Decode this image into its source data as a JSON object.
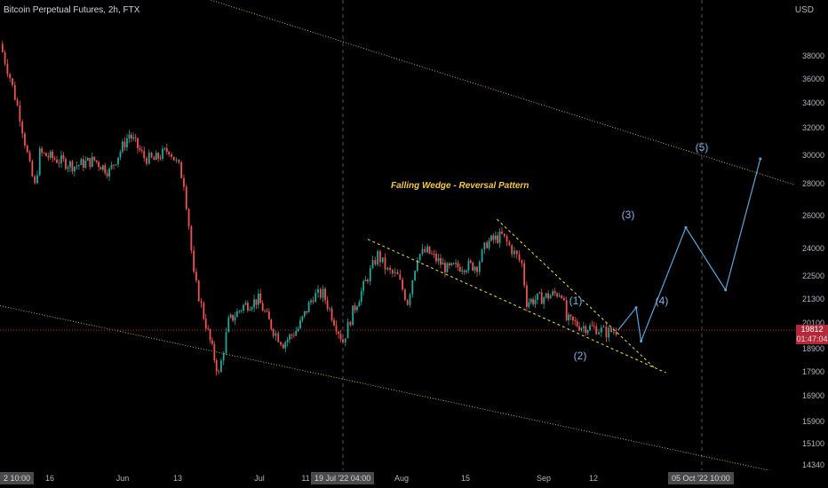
{
  "chart": {
    "title": "Bitcoin Perpetual Futures, 2h, FTX",
    "currency": "USD",
    "current_price": "19812",
    "countdown": "01:47:04"
  },
  "colors": {
    "background": "#000000",
    "candle_up": "#26a69a",
    "candle_down": "#ef5350",
    "channel": "#c9b23d",
    "wedge": "#f2e03a",
    "projection": "#5ea6d6",
    "price_line": "#b2293a",
    "annotation": "#f2c94c",
    "wave_label": "#7fb5e6"
  },
  "price_axis": {
    "ticks": [
      "38000",
      "36000",
      "34000",
      "32000",
      "30000",
      "28000",
      "26000",
      "24000",
      "22500",
      "21300",
      "20100",
      "18900",
      "17900",
      "16900",
      "15900",
      "15100",
      "14340"
    ]
  },
  "time_axis": {
    "labels": [
      {
        "label": "16"
      },
      {
        "label": "Jun"
      },
      {
        "label": "13"
      },
      {
        "label": "Jul"
      },
      {
        "label": "11"
      },
      {
        "label": "Aug"
      },
      {
        "label": "15"
      },
      {
        "label": "Sep"
      },
      {
        "label": "12"
      }
    ],
    "left_tag": "2 10:00",
    "cursor_tag_1": "19 Jul '22 04:00",
    "cursor_tag_2": "05 Oct '22 10:00"
  },
  "annotations": {
    "pattern": "Falling Wedge - Reversal Pattern",
    "waves": [
      "(1)",
      "(2)",
      "(3)",
      "(4)",
      "(5)"
    ]
  },
  "chart_data": {
    "type": "candlestick",
    "title": "Bitcoin Perpetual Futures, 2h, FTX",
    "yscale": "log",
    "ylim": [
      14340,
      39500
    ],
    "x_range": [
      "2022-05-05",
      "2022-10-12"
    ],
    "price_path": [
      [
        "2022-05-05",
        39200
      ],
      [
        "2022-05-07",
        36200
      ],
      [
        "2022-05-09",
        33000
      ],
      [
        "2022-05-11",
        29200
      ],
      [
        "2022-05-12",
        27900
      ],
      [
        "2022-05-13",
        30200
      ],
      [
        "2022-05-16",
        29800
      ],
      [
        "2022-05-20",
        29300
      ],
      [
        "2022-05-24",
        29700
      ],
      [
        "2022-05-27",
        28900
      ],
      [
        "2022-05-31",
        31600
      ],
      [
        "2022-06-03",
        29900
      ],
      [
        "2022-06-05",
        29700
      ],
      [
        "2022-06-08",
        30500
      ],
      [
        "2022-06-10",
        29200
      ],
      [
        "2022-06-11",
        28200
      ],
      [
        "2022-06-12",
        25500
      ],
      [
        "2022-06-13",
        22500
      ],
      [
        "2022-06-14",
        21500
      ],
      [
        "2022-06-15",
        20500
      ],
      [
        "2022-06-18",
        17800
      ],
      [
        "2022-06-20",
        20200
      ],
      [
        "2022-06-23",
        21000
      ],
      [
        "2022-06-26",
        21300
      ],
      [
        "2022-06-29",
        19800
      ],
      [
        "2022-07-01",
        19200
      ],
      [
        "2022-07-04",
        19900
      ],
      [
        "2022-07-07",
        21500
      ],
      [
        "2022-07-09",
        21600
      ],
      [
        "2022-07-13",
        19300
      ],
      [
        "2022-07-15",
        20700
      ],
      [
        "2022-07-18",
        22500
      ],
      [
        "2022-07-20",
        23700
      ],
      [
        "2022-07-22",
        22800
      ],
      [
        "2022-07-24",
        22500
      ],
      [
        "2022-07-26",
        21200
      ],
      [
        "2022-07-28",
        23700
      ],
      [
        "2022-07-30",
        23900
      ],
      [
        "2022-08-03",
        22900
      ],
      [
        "2022-08-06",
        23100
      ],
      [
        "2022-08-09",
        23100
      ],
      [
        "2022-08-11",
        24400
      ],
      [
        "2022-08-14",
        24800
      ],
      [
        "2022-08-16",
        24000
      ],
      [
        "2022-08-18",
        23200
      ],
      [
        "2022-08-19",
        21200
      ],
      [
        "2022-08-22",
        21400
      ],
      [
        "2022-08-26",
        21700
      ],
      [
        "2022-08-27",
        20300
      ],
      [
        "2022-08-30",
        20000
      ],
      [
        "2022-09-02",
        19900
      ],
      [
        "2022-09-04",
        19700
      ],
      [
        "2022-09-06",
        19812
      ]
    ],
    "projection": [
      {
        "label": "(1)",
        "date": "2022-09-10",
        "price": 20900
      },
      {
        "label": "(2)",
        "date": "2022-09-11",
        "price": 19300
      },
      {
        "label": "(3)",
        "date": "2022-09-20",
        "price": 25300
      },
      {
        "label": "(4)",
        "date": "2022-09-28",
        "price": 21800
      },
      {
        "label": "(5)",
        "date": "2022-10-05",
        "price": 29800
      }
    ],
    "falling_wedge": {
      "upper": [
        [
          "2022-08-13",
          25800
        ],
        [
          "2022-09-10",
          19900
        ]
      ],
      "lower": [
        [
          "2022-07-18",
          24600
        ],
        [
          "2022-09-16",
          17900
        ]
      ]
    },
    "channel": {
      "upper": [
        [
          "2022-05-05",
          51000
        ],
        [
          "2022-10-12",
          28000
        ]
      ],
      "lower": [
        [
          "2022-05-05",
          21000
        ],
        [
          "2022-10-12",
          14000
        ]
      ]
    },
    "current_price": 19812
  }
}
